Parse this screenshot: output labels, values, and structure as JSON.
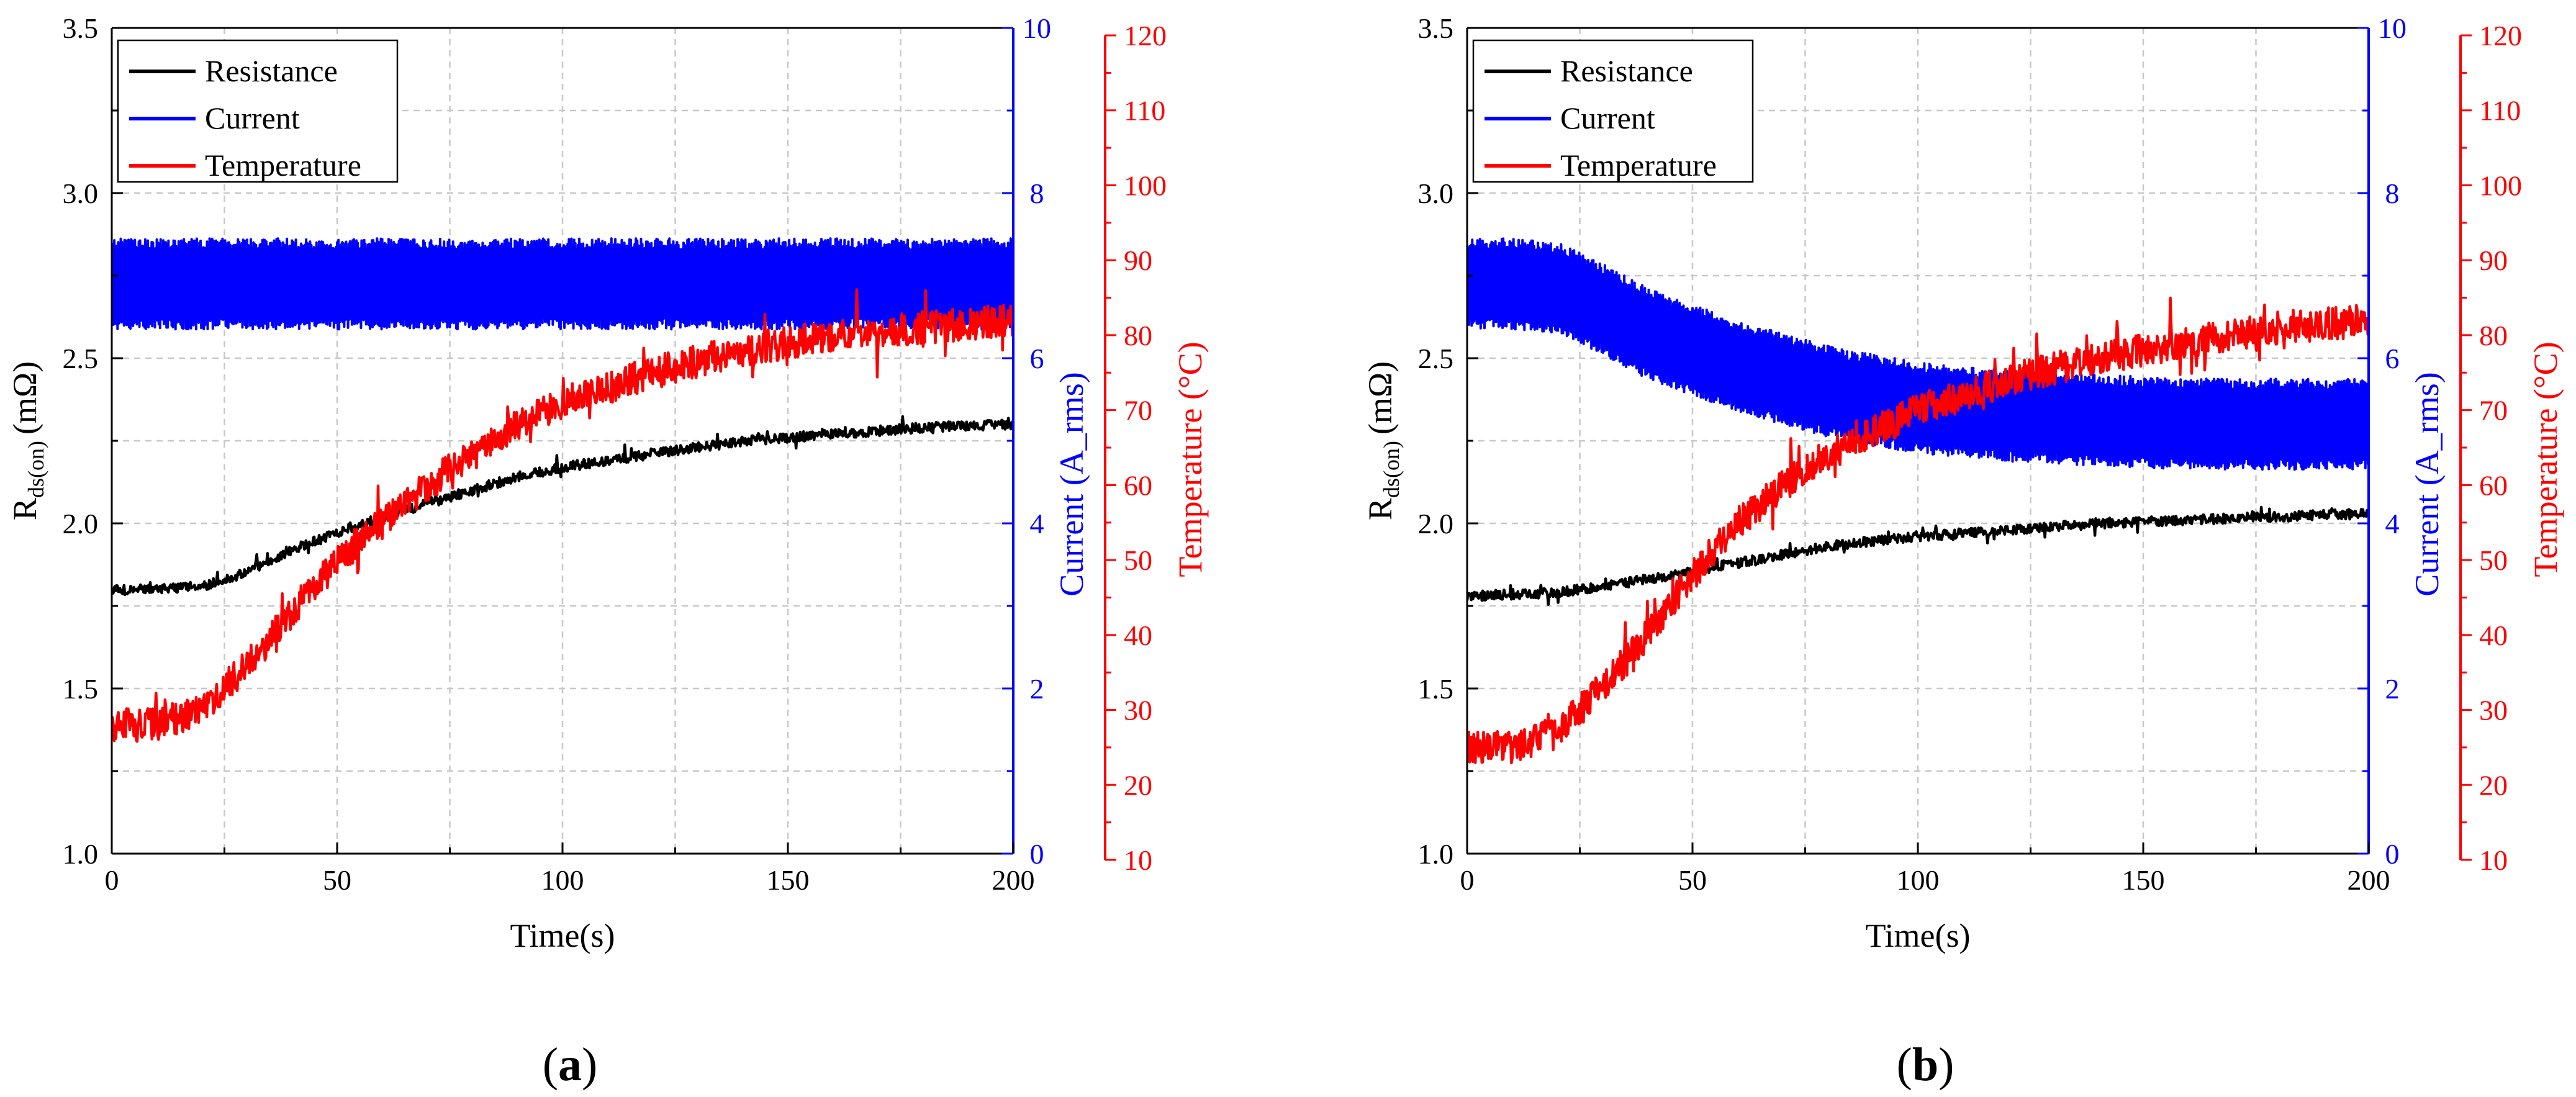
{
  "figure": {
    "panels": [
      {
        "label_open": "(",
        "label": "a",
        "label_close": ")"
      },
      {
        "label_open": "(",
        "label": "b",
        "label_close": ")"
      }
    ]
  },
  "colors": {
    "resistance": "#000000",
    "current": "#0000ff",
    "temperature": "#ff0000",
    "grid": "#c8c8c8"
  },
  "chart_data": [
    {
      "type": "line",
      "panel": "a",
      "xlabel": "Time(s)",
      "ylabel_main": "R",
      "ylabel_sub": "ds(on)",
      "ylabel_unit": "(mΩ)",
      "ylabel_right1": "Current (A_rms)",
      "ylabel_right2": "Temperature (°C)",
      "xlim": [
        0,
        200
      ],
      "xticks": [
        "0",
        "50",
        "100",
        "150",
        "200"
      ],
      "ylim_left": [
        1.0,
        3.5
      ],
      "yticks_left": [
        "1.0",
        "1.5",
        "2.0",
        "2.5",
        "3.0",
        "3.5"
      ],
      "ylim_right1": [
        0,
        10
      ],
      "yticks_right1": [
        "0",
        "2",
        "4",
        "6",
        "8",
        "10"
      ],
      "ylim_right2": [
        10,
        120
      ],
      "yticks_right2": [
        "10",
        "20",
        "30",
        "40",
        "50",
        "60",
        "70",
        "80",
        "90",
        "100",
        "110",
        "120"
      ],
      "grid": true,
      "legend_position": "top-left",
      "series": [
        {
          "name": "Resistance",
          "axis": "left",
          "x": [
            0,
            10,
            20,
            30,
            40,
            50,
            60,
            70,
            80,
            90,
            100,
            120,
            140,
            160,
            180,
            200
          ],
          "y": [
            1.8,
            1.8,
            1.81,
            1.85,
            1.92,
            1.97,
            2.02,
            2.06,
            2.1,
            2.14,
            2.17,
            2.21,
            2.25,
            2.27,
            2.29,
            2.3
          ],
          "noise": 0.015
        },
        {
          "name": "Current",
          "axis": "right1",
          "x": [
            0,
            200
          ],
          "y": [
            6.9,
            6.9
          ],
          "noise": 0.55
        },
        {
          "name": "Temperature",
          "axis": "right2",
          "x": [
            0,
            10,
            20,
            30,
            40,
            50,
            60,
            70,
            80,
            90,
            100,
            110,
            120,
            140,
            160,
            180,
            200
          ],
          "y": [
            28,
            28,
            30,
            36,
            43,
            50,
            55,
            60,
            64,
            68,
            71,
            73,
            75,
            78,
            80,
            81,
            82
          ],
          "noise": 2.2
        }
      ]
    },
    {
      "type": "line",
      "panel": "b",
      "xlabel": "Time(s)",
      "ylabel_main": "R",
      "ylabel_sub": "ds(on)",
      "ylabel_unit": "(mΩ)",
      "ylabel_right1": "Current (A_rms)",
      "ylabel_right2": "Temperature (°C)",
      "xlim": [
        0,
        200
      ],
      "xticks": [
        "0",
        "50",
        "100",
        "150",
        "200"
      ],
      "ylim_left": [
        1.0,
        3.5
      ],
      "yticks_left": [
        "1.0",
        "1.5",
        "2.0",
        "2.5",
        "3.0",
        "3.5"
      ],
      "ylim_right1": [
        0,
        10
      ],
      "yticks_right1": [
        "0",
        "2",
        "4",
        "6",
        "8",
        "10"
      ],
      "ylim_right2": [
        10,
        120
      ],
      "yticks_right2": [
        "10",
        "20",
        "30",
        "40",
        "50",
        "60",
        "70",
        "80",
        "90",
        "100",
        "110",
        "120"
      ],
      "grid": true,
      "legend_position": "top-left",
      "series": [
        {
          "name": "Resistance",
          "axis": "left",
          "x": [
            0,
            20,
            40,
            60,
            80,
            100,
            120,
            140,
            160,
            180,
            200
          ],
          "y": [
            1.78,
            1.79,
            1.83,
            1.88,
            1.93,
            1.96,
            1.98,
            2.0,
            2.01,
            2.02,
            2.03
          ],
          "noise": 0.015
        },
        {
          "name": "Current",
          "axis": "right1",
          "x": [
            0,
            10,
            20,
            30,
            40,
            60,
            80,
            100,
            120,
            140,
            160,
            180,
            200
          ],
          "y": [
            6.9,
            6.9,
            6.85,
            6.6,
            6.3,
            5.9,
            5.6,
            5.4,
            5.3,
            5.25,
            5.2,
            5.2,
            5.2
          ],
          "noise": 0.55
        },
        {
          "name": "Temperature",
          "axis": "right2",
          "x": [
            0,
            10,
            20,
            30,
            40,
            50,
            60,
            70,
            80,
            90,
            100,
            110,
            120,
            140,
            160,
            180,
            200
          ],
          "y": [
            25,
            25,
            27,
            33,
            40,
            48,
            55,
            60,
            64,
            67,
            70,
            72,
            74,
            77,
            79,
            81,
            82
          ],
          "noise": 2.2
        }
      ]
    }
  ]
}
